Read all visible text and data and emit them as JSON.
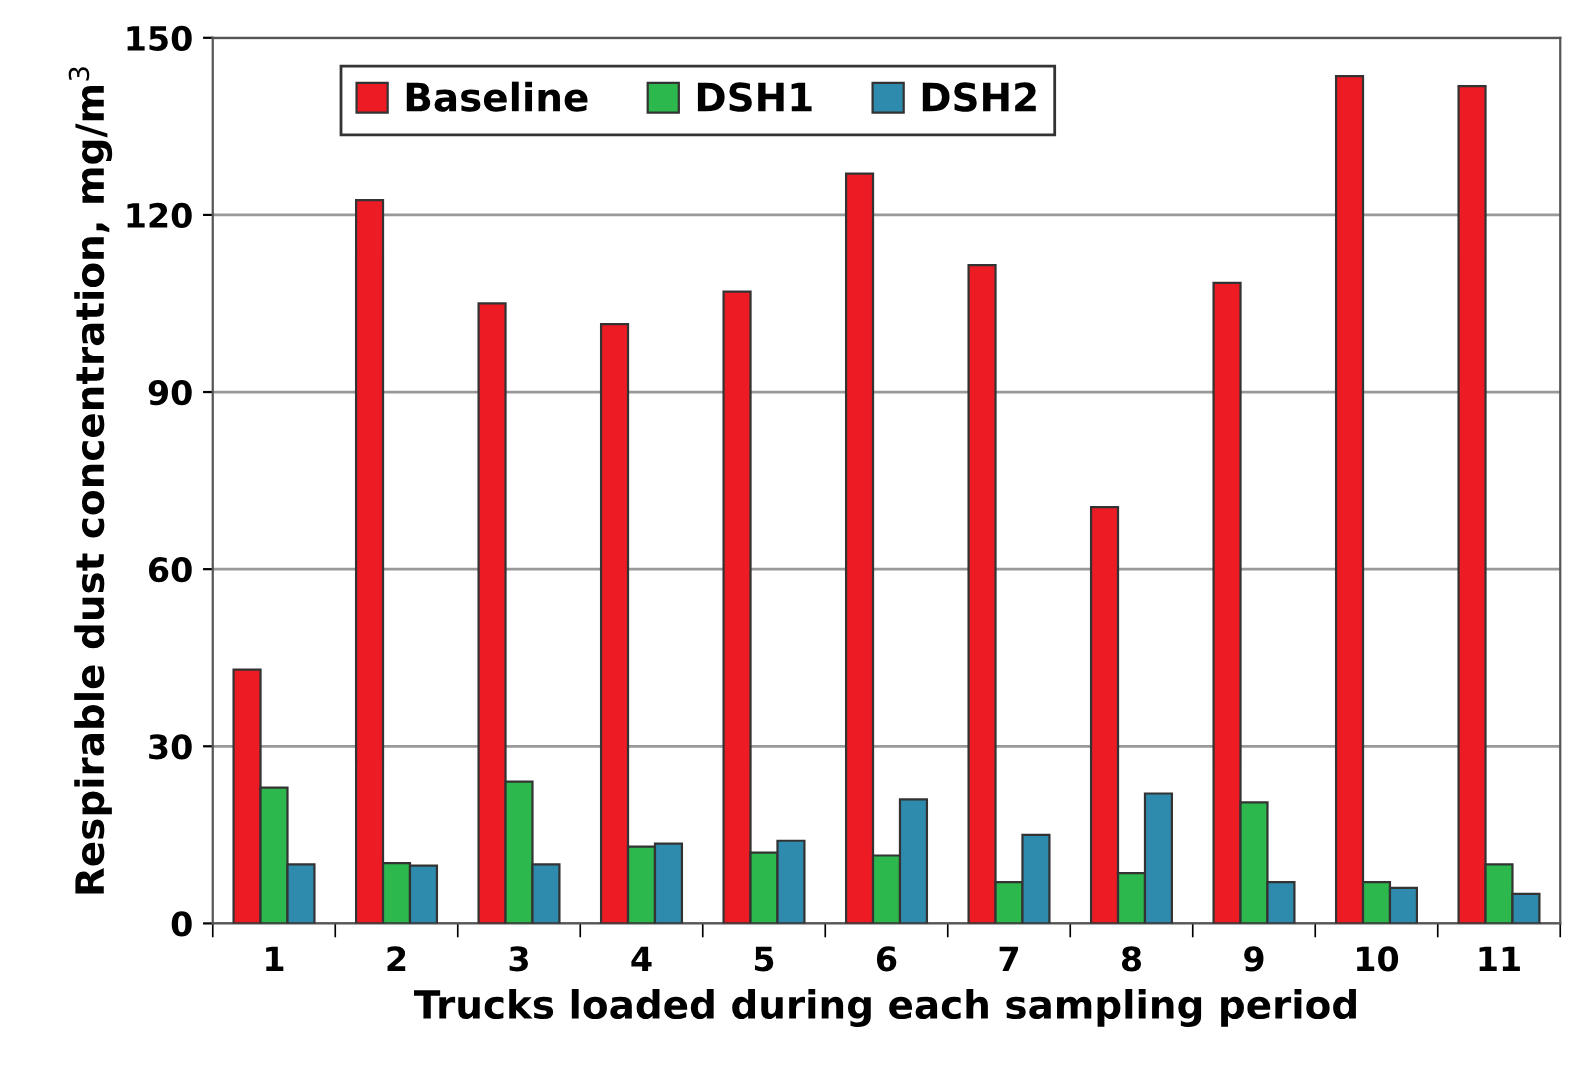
{
  "chart_data": {
    "type": "bar",
    "xlabel": "Trucks loaded during each sampling period",
    "ylabel": "Respirable dust concentration, mg/m$^{3}$",
    "categories": [
      "1",
      "2",
      "3",
      "4",
      "5",
      "6",
      "7",
      "8",
      "9",
      "10",
      "11"
    ],
    "series": [
      {
        "name": "Baseline",
        "color": "#ed1c24",
        "values": [
          43,
          122.5,
          105,
          101.5,
          107,
          127,
          111.5,
          70.5,
          108.5,
          143.5,
          141.8
        ]
      },
      {
        "name": "DSH1",
        "color": "#2db84d",
        "values": [
          23,
          10.2,
          24,
          13,
          12,
          11.5,
          7,
          8.5,
          20.5,
          7,
          10
        ]
      },
      {
        "name": "DSH2",
        "color": "#2e8bad",
        "values": [
          10,
          9.8,
          10,
          13.5,
          14,
          21,
          15,
          22,
          7,
          6,
          5
        ]
      }
    ],
    "ylim": [
      0,
      150
    ],
    "yticks": [
      0,
      30,
      60,
      90,
      120,
      150
    ],
    "grid": "y",
    "legend": "top"
  }
}
